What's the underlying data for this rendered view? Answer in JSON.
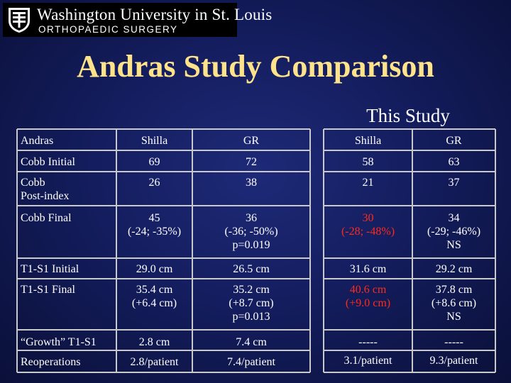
{
  "header": {
    "university": "Washington University in St. Louis",
    "department": "ORTHOPAEDIC SURGERY",
    "crest_icon": "university-shield-icon"
  },
  "slide": {
    "title": "Andras Study Comparison",
    "this_study_label": "This Study"
  },
  "andras_table": {
    "columns": [
      "Andras",
      "Shilla",
      "GR"
    ],
    "rows": [
      {
        "label": [
          "Cobb Initial"
        ],
        "shilla": [
          "69"
        ],
        "gr": [
          "72"
        ]
      },
      {
        "label": [
          "Cobb",
          "Post-index"
        ],
        "shilla": [
          "26"
        ],
        "gr": [
          "38"
        ]
      },
      {
        "label": [
          "Cobb Final"
        ],
        "shilla": [
          "45",
          "(-24; -35%)"
        ],
        "gr": [
          "36",
          "(-36; -50%)",
          "p=0.019"
        ]
      },
      {
        "label": [
          "T1-S1 Initial"
        ],
        "shilla": [
          "29.0 cm"
        ],
        "gr": [
          "26.5 cm"
        ]
      },
      {
        "label": [
          "T1-S1 Final"
        ],
        "shilla": [
          "35.4 cm",
          "(+6.4 cm)"
        ],
        "gr": [
          "35.2 cm",
          "(+8.7 cm)",
          "p=0.013"
        ]
      },
      {
        "label": [
          "“Growth” T1-S1"
        ],
        "shilla": [
          "2.8 cm"
        ],
        "gr": [
          "7.4 cm"
        ]
      },
      {
        "label": [
          "Reoperations"
        ],
        "shilla": [
          "2.8/patient"
        ],
        "gr": [
          "7.4/patient"
        ]
      }
    ]
  },
  "this_study_table": {
    "columns": [
      "Shilla",
      "GR"
    ],
    "rows": [
      {
        "shilla": [
          "58"
        ],
        "gr": [
          "63"
        ]
      },
      {
        "shilla": [
          "21"
        ],
        "gr": [
          "37"
        ]
      },
      {
        "shilla": [
          "30",
          "(-28; -48%)"
        ],
        "gr": [
          "34",
          "(-29; -46%)",
          "NS"
        ]
      },
      {
        "shilla": [
          "31.6 cm"
        ],
        "gr": [
          "29.2 cm"
        ]
      },
      {
        "shilla": [
          "40.6 cm",
          "(+9.0 cm)"
        ],
        "gr": [
          "37.8 cm",
          "(+8.6 cm)",
          "NS"
        ]
      },
      {
        "shilla": [
          "-----"
        ],
        "gr": [
          "-----"
        ]
      },
      {
        "shilla": [
          "3.1/patient"
        ],
        "gr": [
          "9.3/patient"
        ]
      }
    ]
  },
  "colors": {
    "title": "#ffe38a",
    "highlight": "#ff2a1a",
    "grid": "#c9c9c9"
  }
}
